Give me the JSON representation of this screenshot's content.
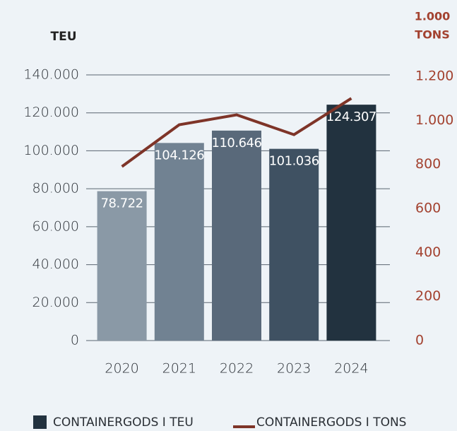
{
  "chart_data": {
    "type": "bar_line",
    "ylabel": "TEU",
    "y2label": [
      "1.000",
      "TONS"
    ],
    "categories": [
      "2020",
      "2021",
      "2022",
      "2023",
      "2024"
    ],
    "series": [
      {
        "name": "CONTAINERGODS I TEU",
        "type": "bar",
        "color": "#22323f",
        "colors": [
          "#8a99a6",
          "#718292",
          "#59697a",
          "#3f5162",
          "#22323f"
        ],
        "values": [
          78722,
          104126,
          110646,
          101036,
          124307
        ],
        "value_labels": [
          "78.722",
          "104.126",
          "110.646",
          "101.036",
          "124.307"
        ]
      },
      {
        "name": "CONTAINERGODS I TONS",
        "type": "line",
        "axis": "y2",
        "color": "#7e3428",
        "values": [
          790,
          980,
          1025,
          935,
          1100
        ]
      }
    ],
    "ylim": [
      0,
      140000
    ],
    "yticks": [
      0,
      {
        "value": 20000,
        "label": "20.000"
      },
      {
        "value": 40000,
        "label": "40.000"
      },
      {
        "value": 60000,
        "label": "60.000"
      },
      {
        "value": 80000,
        "label": "80.000"
      },
      {
        "value": 100000,
        "label": "100.000"
      },
      {
        "value": 120000,
        "label": "120.000"
      },
      {
        "value": 140000,
        "label": "140.000"
      }
    ],
    "y2lim": [
      0,
      1200
    ],
    "y2ticks": [
      0,
      200,
      400,
      600,
      800,
      {
        "value": 1000,
        "label": "1.000"
      },
      {
        "value": 1200,
        "label": "1.200"
      }
    ],
    "grid": true
  }
}
